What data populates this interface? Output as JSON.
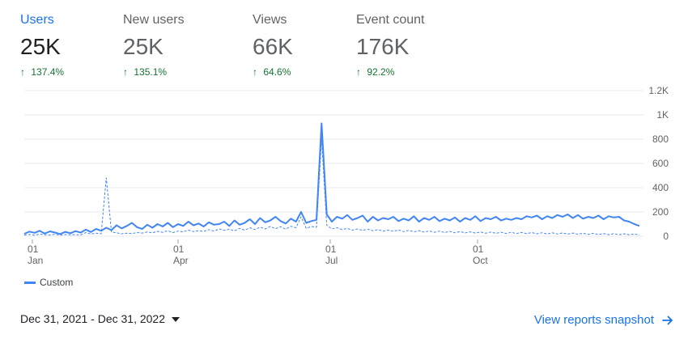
{
  "metrics": [
    {
      "label": "Users",
      "value": "25K",
      "delta": "137.4%",
      "active": true
    },
    {
      "label": "New users",
      "value": "25K",
      "delta": "135.1%",
      "active": false
    },
    {
      "label": "Views",
      "value": "66K",
      "delta": "64.6%",
      "active": false
    },
    {
      "label": "Event count",
      "value": "176K",
      "delta": "92.2%",
      "active": false
    }
  ],
  "chart_data": {
    "type": "line",
    "x_ticks": [
      {
        "day": "01",
        "month": "Jan"
      },
      {
        "day": "01",
        "month": "Apr"
      },
      {
        "day": "01",
        "month": "Jul"
      },
      {
        "day": "01",
        "month": "Oct"
      }
    ],
    "y_ticks": [
      "1.2K",
      "1K",
      "800",
      "600",
      "400",
      "200",
      "0"
    ],
    "ylim": [
      0,
      1200
    ],
    "series": [
      {
        "name": "Custom",
        "style": "solid",
        "color": "#4285f4",
        "values": [
          20,
          38,
          28,
          45,
          22,
          40,
          30,
          18,
          36,
          25,
          42,
          30,
          55,
          35,
          60,
          45,
          70,
          50,
          90,
          65,
          85,
          110,
          75,
          60,
          95,
          70,
          100,
          80,
          110,
          75,
          100,
          85,
          120,
          90,
          105,
          80,
          115,
          95,
          100,
          120,
          85,
          130,
          95,
          110,
          140,
          100,
          150,
          115,
          130,
          160,
          125,
          105,
          145,
          120,
          200,
          110,
          125,
          135,
          930,
          180,
          120,
          160,
          145,
          175,
          135,
          150,
          170,
          120,
          160,
          130,
          150,
          140,
          160,
          125,
          145,
          130,
          165,
          120,
          150,
          135,
          160,
          125,
          145,
          130,
          155,
          120,
          150,
          135,
          165,
          125,
          150,
          140,
          160,
          130,
          145,
          135,
          150,
          140,
          165,
          155,
          170,
          140,
          165,
          150,
          175,
          160,
          180,
          150,
          175,
          145,
          160,
          150,
          170,
          140,
          165,
          155,
          160,
          130,
          120,
          100,
          85
        ]
      },
      {
        "style": "dashed",
        "color": "#4285f4",
        "values": [
          10,
          14,
          8,
          18,
          12,
          10,
          16,
          9,
          14,
          11,
          13,
          10,
          30,
          18,
          25,
          20,
          480,
          35,
          28,
          20,
          25,
          22,
          30,
          26,
          35,
          28,
          40,
          32,
          45,
          30,
          42,
          36,
          50,
          38,
          46,
          40,
          55,
          42,
          60,
          48,
          58,
          44,
          65,
          50,
          70,
          55,
          75,
          60,
          80,
          62,
          78,
          58,
          82,
          70,
          160,
          65,
          80,
          75,
          800,
          90,
          60,
          70,
          55,
          65,
          50,
          60,
          48,
          58,
          45,
          55,
          42,
          50,
          40,
          52,
          38,
          48,
          36,
          46,
          34,
          44,
          32,
          42,
          30,
          40,
          28,
          38,
          27,
          36,
          26,
          35,
          25,
          34,
          24,
          33,
          23,
          32,
          22,
          31,
          21,
          30,
          20,
          29,
          19,
          28,
          18,
          27,
          17,
          26,
          16,
          25,
          15,
          24,
          14,
          22,
          13,
          21,
          12,
          20,
          11,
          18,
          10
        ]
      }
    ]
  },
  "legend": {
    "label": "Custom"
  },
  "footer": {
    "date_range": "Dec 31, 2021 - Dec 31, 2022",
    "snapshot_link": "View reports snapshot"
  }
}
